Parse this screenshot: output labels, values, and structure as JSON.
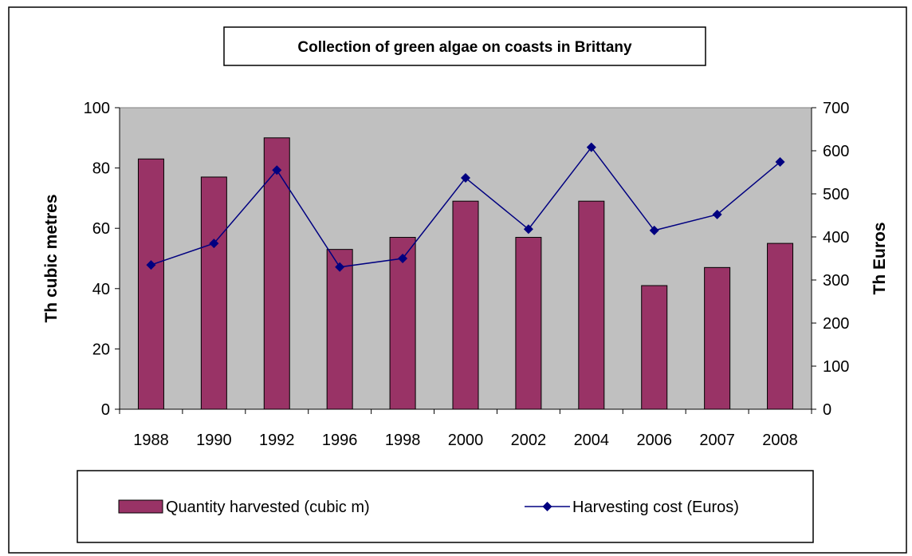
{
  "chart_data": {
    "type": "bar",
    "title": "Collection of green algae on coasts in Brittany",
    "categories": [
      "1988",
      "1990",
      "1992",
      "1996",
      "1998",
      "2000",
      "2002",
      "2004",
      "2006",
      "2007",
      "2008"
    ],
    "series": [
      {
        "name": "Quantity harvested (cubic m)",
        "type": "bar",
        "axis": "left",
        "color": "#993366",
        "values": [
          83,
          77,
          90,
          53,
          57,
          69,
          57,
          69,
          41,
          47,
          55
        ]
      },
      {
        "name": "Harvesting cost (Euros)",
        "type": "line",
        "axis": "right",
        "color": "#000080",
        "marker": "diamond",
        "values": [
          335,
          385,
          555,
          330,
          350,
          537,
          418,
          608,
          415,
          452,
          574
        ]
      }
    ],
    "ylabel": "Th cubic metres",
    "ylim": [
      0,
      100
    ],
    "yticks": [
      "0",
      "20",
      "40",
      "60",
      "80",
      "100"
    ],
    "y2label": "Th Euros",
    "y2lim": [
      0,
      700
    ],
    "y2ticks": [
      "0",
      "100",
      "200",
      "300",
      "400",
      "500",
      "600",
      "700"
    ],
    "plot_background": "#c0c0c0",
    "grid": false,
    "legend_position": "bottom"
  }
}
